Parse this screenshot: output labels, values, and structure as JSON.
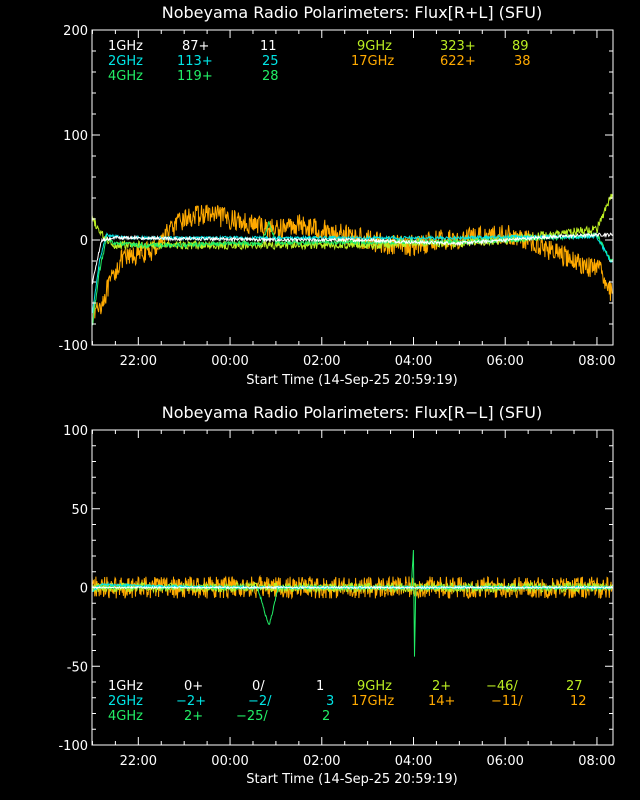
{
  "colors": {
    "background": "#000000",
    "axes": "#ffffff",
    "1GHz": "#ffffff",
    "2GHz": "#00e5e5",
    "4GHz": "#22ee66",
    "9GHz": "#bbee22",
    "17GHz": "#ffaa00"
  },
  "chart_data": [
    {
      "type": "line",
      "title": "Nobeyama Radio Polarimeters: Flux[R+L] (SFU)",
      "xlabel": "Start Time (14-Sep-25 20:59:19)",
      "ylabel": "",
      "x_range_hours": [
        20.99,
        32.35
      ],
      "ylim": [
        -100,
        200
      ],
      "yticks": [
        -100,
        0,
        100,
        200
      ],
      "xticks": [
        {
          "hour": 22,
          "label": "22:00"
        },
        {
          "hour": 24,
          "label": "00:00"
        },
        {
          "hour": 26,
          "label": "02:00"
        },
        {
          "hour": 28,
          "label": "04:00"
        },
        {
          "hour": 30,
          "label": "06:00"
        },
        {
          "hour": 32,
          "label": "08:00"
        }
      ],
      "grid": false,
      "legend": [
        {
          "name": "1GHz",
          "base": "87+",
          "range": "11"
        },
        {
          "name": "2GHz",
          "base": "113+",
          "range": "25"
        },
        {
          "name": "4GHz",
          "base": "119+",
          "range": "28"
        },
        {
          "name": "9GHz",
          "base": "323+",
          "range": "89"
        },
        {
          "name": "17GHz",
          "base": "622+",
          "range": "38"
        }
      ],
      "series": [
        {
          "name": "17GHz",
          "noise": 10,
          "values": [
            [
              21.0,
              -70
            ],
            [
              21.2,
              -60
            ],
            [
              21.4,
              -40
            ],
            [
              21.6,
              -20
            ],
            [
              21.9,
              -15
            ],
            [
              22.3,
              -10
            ],
            [
              22.7,
              10
            ],
            [
              23.0,
              20
            ],
            [
              23.5,
              25
            ],
            [
              24.0,
              20
            ],
            [
              24.5,
              15
            ],
            [
              25.0,
              10
            ],
            [
              25.5,
              15
            ],
            [
              26.0,
              10
            ],
            [
              26.5,
              5
            ],
            [
              27.0,
              0
            ],
            [
              27.5,
              -5
            ],
            [
              28.0,
              -5
            ],
            [
              28.5,
              0
            ],
            [
              29.0,
              0
            ],
            [
              29.5,
              5
            ],
            [
              30.0,
              5
            ],
            [
              30.5,
              0
            ],
            [
              31.0,
              -10
            ],
            [
              31.5,
              -20
            ],
            [
              31.8,
              -25
            ],
            [
              32.1,
              -30
            ],
            [
              32.3,
              -50
            ]
          ]
        },
        {
          "name": "9GHz",
          "noise": 4,
          "values": [
            [
              21.0,
              20
            ],
            [
              21.2,
              5
            ],
            [
              21.5,
              -5
            ],
            [
              22.0,
              -5
            ],
            [
              23.0,
              -5
            ],
            [
              24.0,
              -5
            ],
            [
              25.0,
              -5
            ],
            [
              26.0,
              -5
            ],
            [
              27.0,
              -5
            ],
            [
              28.0,
              -3
            ],
            [
              29.0,
              -3
            ],
            [
              30.0,
              0
            ],
            [
              31.0,
              5
            ],
            [
              31.5,
              8
            ],
            [
              32.0,
              10
            ],
            [
              32.3,
              40
            ]
          ]
        },
        {
          "name": "4GHz",
          "noise": 2,
          "values": [
            [
              21.0,
              -80
            ],
            [
              21.15,
              -30
            ],
            [
              21.3,
              0
            ],
            [
              21.5,
              -3
            ],
            [
              22.0,
              -5
            ],
            [
              23.0,
              -5
            ],
            [
              24.0,
              -3
            ],
            [
              24.7,
              -3
            ],
            [
              24.85,
              18
            ],
            [
              25.0,
              -3
            ],
            [
              26.0,
              -2
            ],
            [
              27.0,
              -2
            ],
            [
              28.0,
              -2
            ],
            [
              29.0,
              -2
            ],
            [
              30.0,
              0
            ],
            [
              31.0,
              2
            ],
            [
              32.0,
              5
            ],
            [
              32.3,
              -20
            ]
          ]
        },
        {
          "name": "2GHz",
          "noise": 1.5,
          "values": [
            [
              21.0,
              -70
            ],
            [
              21.15,
              -20
            ],
            [
              21.3,
              5
            ],
            [
              21.6,
              3
            ],
            [
              22.0,
              2
            ],
            [
              23.0,
              2
            ],
            [
              24.0,
              2
            ],
            [
              25.0,
              2
            ],
            [
              26.0,
              2
            ],
            [
              27.0,
              2
            ],
            [
              28.0,
              2
            ],
            [
              29.0,
              2
            ],
            [
              30.0,
              3
            ],
            [
              31.0,
              3
            ],
            [
              32.0,
              3
            ],
            [
              32.3,
              -20
            ]
          ]
        },
        {
          "name": "1GHz",
          "noise": 1.5,
          "values": [
            [
              21.0,
              -40
            ],
            [
              21.2,
              0
            ],
            [
              21.5,
              2
            ],
            [
              22.0,
              2
            ],
            [
              23.0,
              1
            ],
            [
              24.0,
              1
            ],
            [
              25.0,
              0
            ],
            [
              26.0,
              0
            ],
            [
              27.0,
              0
            ],
            [
              28.0,
              -2
            ],
            [
              29.0,
              -3
            ],
            [
              30.0,
              0
            ],
            [
              31.0,
              3
            ],
            [
              32.0,
              5
            ],
            [
              32.3,
              5
            ]
          ]
        }
      ]
    },
    {
      "type": "line",
      "title": "Nobeyama Radio Polarimeters: Flux[R−L] (SFU)",
      "xlabel": "Start Time (14-Sep-25 20:59:19)",
      "ylabel": "",
      "x_range_hours": [
        20.99,
        32.35
      ],
      "ylim": [
        -100,
        100
      ],
      "yticks": [
        -100,
        -50,
        0,
        50,
        100
      ],
      "xticks": [
        {
          "hour": 22,
          "label": "22:00"
        },
        {
          "hour": 24,
          "label": "00:00"
        },
        {
          "hour": 26,
          "label": "02:00"
        },
        {
          "hour": 28,
          "label": "04:00"
        },
        {
          "hour": 30,
          "label": "06:00"
        },
        {
          "hour": 32,
          "label": "08:00"
        }
      ],
      "grid": false,
      "legend": [
        {
          "name": "1GHz",
          "base": "0+",
          "ratio": "0/",
          "range": "1"
        },
        {
          "name": "2GHz",
          "base": "−2+",
          "ratio": "−2/",
          "range": "3"
        },
        {
          "name": "4GHz",
          "base": "2+",
          "ratio": "−25/",
          "range": "2"
        },
        {
          "name": "9GHz",
          "base": "2+",
          "ratio": "−46/",
          "range": "27"
        },
        {
          "name": "17GHz",
          "base": "14+",
          "ratio": "−11/",
          "range": "12"
        }
      ],
      "series": [
        {
          "name": "17GHz",
          "noise": 7,
          "values": [
            [
              21.0,
              0
            ],
            [
              24.0,
              0
            ],
            [
              27.0,
              0
            ],
            [
              30.0,
              0
            ],
            [
              32.3,
              0
            ]
          ]
        },
        {
          "name": "9GHz",
          "noise": 3,
          "values": [
            [
              21.0,
              0
            ],
            [
              24.0,
              0
            ],
            [
              27.0,
              0
            ],
            [
              30.0,
              0
            ],
            [
              32.3,
              0
            ]
          ]
        },
        {
          "name": "4GHz",
          "noise": 1,
          "values": [
            [
              21.0,
              0
            ],
            [
              24.6,
              0
            ],
            [
              24.85,
              -25
            ],
            [
              25.05,
              0
            ],
            [
              27.95,
              0
            ],
            [
              28.0,
              25
            ],
            [
              28.02,
              -47
            ],
            [
              28.05,
              0
            ],
            [
              32.3,
              0
            ]
          ]
        },
        {
          "name": "2GHz",
          "noise": 0.8,
          "values": [
            [
              21.0,
              -2
            ],
            [
              21.2,
              2
            ],
            [
              22.0,
              1
            ],
            [
              24.0,
              0
            ],
            [
              26.0,
              0
            ],
            [
              28.0,
              0
            ],
            [
              30.0,
              0
            ],
            [
              32.3,
              0
            ]
          ]
        },
        {
          "name": "1GHz",
          "noise": 0.5,
          "values": [
            [
              21.0,
              0
            ],
            [
              32.3,
              0
            ]
          ]
        }
      ]
    }
  ]
}
